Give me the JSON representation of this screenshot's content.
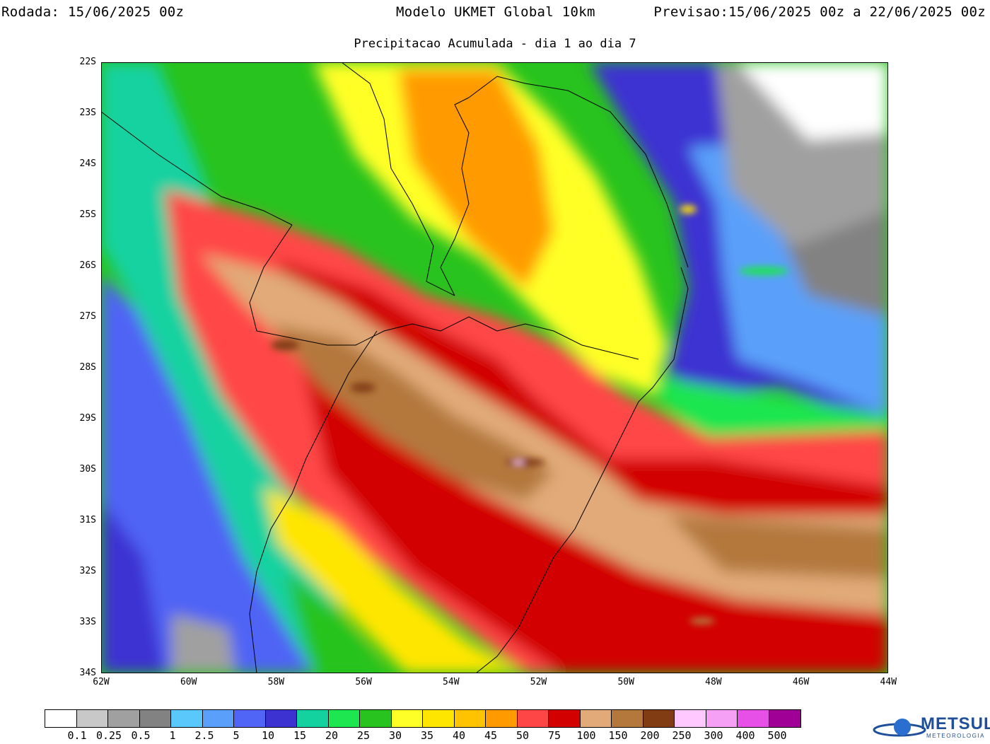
{
  "header": {
    "run_label": "Rodada:",
    "run_value": "15/06/2025 00z",
    "model": "Modelo UKMET Global 10km",
    "forecast_label": "Previsao:",
    "forecast_value": "15/06/2025 00z a 22/06/2025 00z",
    "subtitle": "Precipitacao Acumulada - dia 1 ao dia 7"
  },
  "axes": {
    "lat_labels": [
      "22S",
      "23S",
      "24S",
      "25S",
      "26S",
      "27S",
      "28S",
      "29S",
      "30S",
      "31S",
      "32S",
      "33S",
      "34S"
    ],
    "lon_labels": [
      "62W",
      "60W",
      "58W",
      "56W",
      "54W",
      "52W",
      "50W",
      "48W",
      "46W",
      "44W"
    ]
  },
  "legend": {
    "labels": [
      "0.1",
      "0.25",
      "0.5",
      "1",
      "2.5",
      "5",
      "10",
      "15",
      "20",
      "25",
      "30",
      "35",
      "40",
      "45",
      "50",
      "75",
      "100",
      "150",
      "200",
      "250",
      "300",
      "400",
      "500"
    ],
    "colors": [
      "#ffffff",
      "#c8c8c8",
      "#a0a0a0",
      "#828282",
      "#5ac8fa",
      "#5aa0fa",
      "#5064f5",
      "#3c32d2",
      "#14d2a0",
      "#1ee650",
      "#28c31e",
      "#ffff28",
      "#ffe600",
      "#ffc300",
      "#ff9b00",
      "#ff4646",
      "#d20000",
      "#e1aa78",
      "#b4783c",
      "#823c14",
      "#ffc8ff",
      "#f5a0f5",
      "#e650e6",
      "#a00096"
    ]
  },
  "colors": {
    "coast": "#000000",
    "ocean_ne": "#ffffff",
    "brand": "#1f4f9a"
  },
  "logo": {
    "text": "METSUL",
    "sub": "METEOROLOGIA"
  }
}
